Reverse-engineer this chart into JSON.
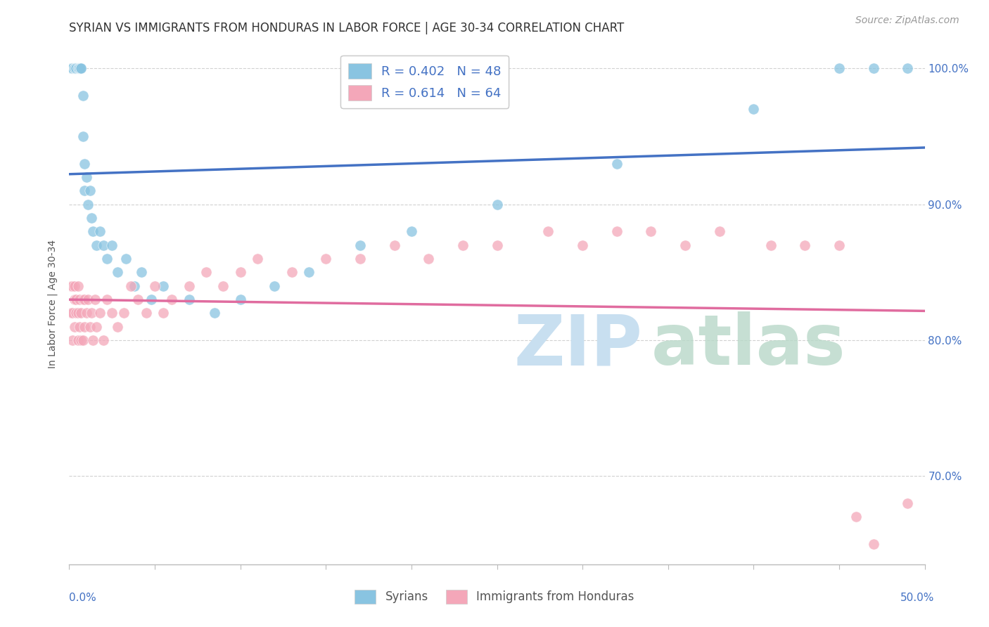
{
  "title": "SYRIAN VS IMMIGRANTS FROM HONDURAS IN LABOR FORCE | AGE 30-34 CORRELATION CHART",
  "source": "Source: ZipAtlas.com",
  "ylabel": "In Labor Force | Age 30-34",
  "legend_syrians": "R = 0.402   N = 48",
  "legend_honduras": "R = 0.614   N = 64",
  "legend_label_syrians": "Syrians",
  "legend_label_honduras": "Immigrants from Honduras",
  "xmin": 0.0,
  "xmax": 0.5,
  "ymin": 0.635,
  "ymax": 1.018,
  "right_yticks": [
    0.7,
    0.8,
    0.9,
    1.0
  ],
  "right_ytick_labels": [
    "70.0%",
    "80.0%",
    "90.0%",
    "100.0%"
  ],
  "color_syrian": "#89c4e1",
  "color_honduras": "#f4a7b9",
  "color_syrian_line": "#4472c4",
  "color_honduras_line": "#e06c9f",
  "color_text_blue": "#4472c4",
  "bg_color": "#ffffff",
  "grid_color": "#cccccc",
  "title_fontsize": 12,
  "axis_label_fontsize": 10,
  "tick_fontsize": 11,
  "syrian_x": [
    0.001,
    0.002,
    0.002,
    0.003,
    0.003,
    0.003,
    0.004,
    0.004,
    0.005,
    0.005,
    0.006,
    0.006,
    0.006,
    0.007,
    0.007,
    0.008,
    0.008,
    0.009,
    0.009,
    0.01,
    0.011,
    0.012,
    0.013,
    0.014,
    0.016,
    0.018,
    0.02,
    0.022,
    0.025,
    0.028,
    0.033,
    0.038,
    0.042,
    0.048,
    0.055,
    0.07,
    0.085,
    0.1,
    0.12,
    0.14,
    0.17,
    0.2,
    0.25,
    0.32,
    0.4,
    0.45,
    0.47,
    0.49
  ],
  "syrian_y": [
    1.0,
    1.0,
    1.0,
    1.0,
    1.0,
    1.0,
    1.0,
    1.0,
    1.0,
    1.0,
    1.0,
    1.0,
    1.0,
    1.0,
    1.0,
    0.98,
    0.95,
    0.93,
    0.91,
    0.92,
    0.9,
    0.91,
    0.89,
    0.88,
    0.87,
    0.88,
    0.87,
    0.86,
    0.87,
    0.85,
    0.86,
    0.84,
    0.85,
    0.83,
    0.84,
    0.83,
    0.82,
    0.83,
    0.84,
    0.85,
    0.87,
    0.88,
    0.9,
    0.93,
    0.97,
    1.0,
    1.0,
    1.0
  ],
  "honduras_x": [
    0.001,
    0.001,
    0.002,
    0.002,
    0.002,
    0.003,
    0.003,
    0.003,
    0.004,
    0.004,
    0.005,
    0.005,
    0.005,
    0.006,
    0.006,
    0.007,
    0.007,
    0.008,
    0.008,
    0.009,
    0.009,
    0.01,
    0.011,
    0.012,
    0.013,
    0.014,
    0.015,
    0.016,
    0.018,
    0.02,
    0.022,
    0.025,
    0.028,
    0.032,
    0.036,
    0.04,
    0.045,
    0.05,
    0.055,
    0.06,
    0.07,
    0.08,
    0.09,
    0.1,
    0.11,
    0.13,
    0.15,
    0.17,
    0.19,
    0.21,
    0.23,
    0.25,
    0.28,
    0.3,
    0.32,
    0.34,
    0.36,
    0.38,
    0.41,
    0.43,
    0.45,
    0.46,
    0.47,
    0.49
  ],
  "honduras_y": [
    0.82,
    0.84,
    0.82,
    0.84,
    0.8,
    0.83,
    0.81,
    0.84,
    0.82,
    0.83,
    0.8,
    0.82,
    0.84,
    0.81,
    0.83,
    0.8,
    0.82,
    0.8,
    0.83,
    0.81,
    0.83,
    0.82,
    0.83,
    0.81,
    0.82,
    0.8,
    0.83,
    0.81,
    0.82,
    0.8,
    0.83,
    0.82,
    0.81,
    0.82,
    0.84,
    0.83,
    0.82,
    0.84,
    0.82,
    0.83,
    0.84,
    0.85,
    0.84,
    0.85,
    0.86,
    0.85,
    0.86,
    0.86,
    0.87,
    0.86,
    0.87,
    0.87,
    0.88,
    0.87,
    0.88,
    0.88,
    0.87,
    0.88,
    0.87,
    0.87,
    0.87,
    0.67,
    0.65,
    0.68
  ]
}
